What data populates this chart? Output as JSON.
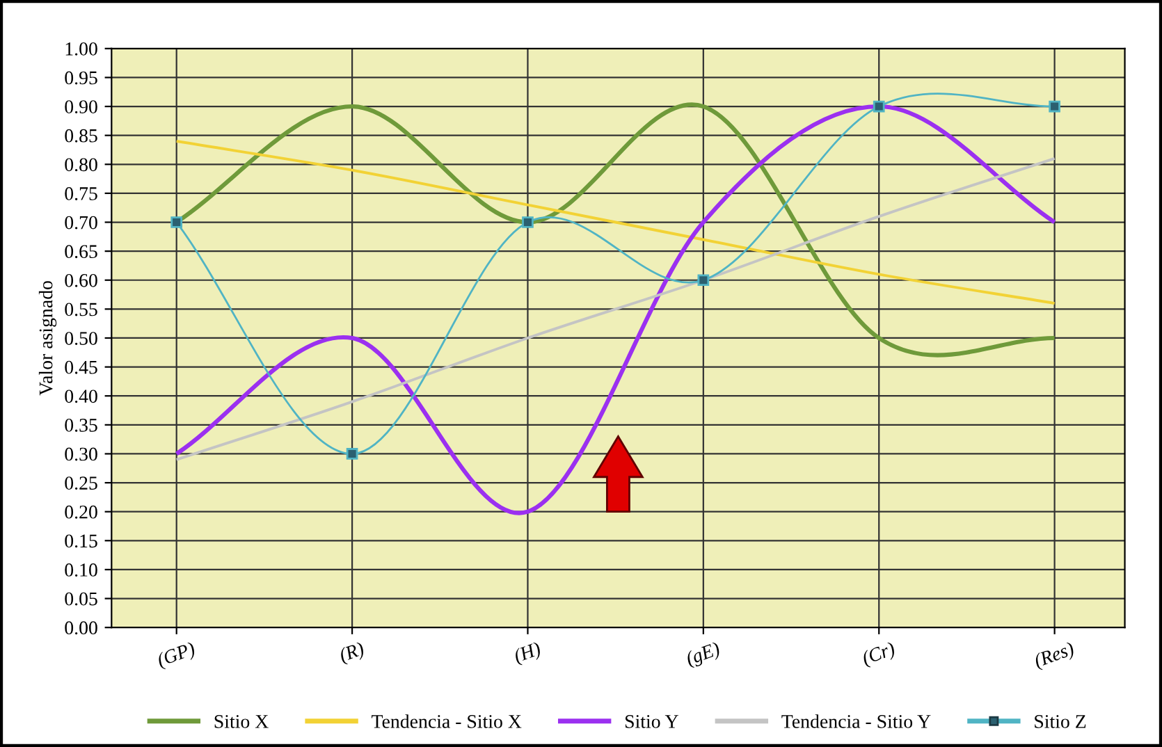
{
  "chart_data": {
    "type": "line",
    "ylabel": "Valor asignado",
    "categories": [
      "(GP)",
      "(R)",
      "(H)",
      "(gE)",
      "(Cr)",
      "(Res)"
    ],
    "series": [
      {
        "name": "Sitio X",
        "color": "#6f9a3a",
        "values": [
          0.7,
          0.9,
          0.7,
          0.9,
          0.5,
          0.5
        ]
      },
      {
        "name": "Tendencia - Sitio X",
        "color": "#f2d235",
        "values": [
          0.84,
          0.79,
          0.73,
          0.67,
          0.61,
          0.56
        ]
      },
      {
        "name": "Sitio Y",
        "color": "#9b30f0",
        "values": [
          0.3,
          0.5,
          0.2,
          0.7,
          0.9,
          0.7
        ]
      },
      {
        "name": "Tendencia - Sitio Y",
        "color": "#c4c4c4",
        "values": [
          0.29,
          0.39,
          0.5,
          0.6,
          0.71,
          0.81
        ]
      },
      {
        "name": "Sitio Z",
        "color": "#50b4c4",
        "marker": "square",
        "values": [
          0.7,
          0.3,
          0.7,
          0.6,
          0.9,
          0.9
        ]
      }
    ],
    "ylim": [
      0,
      1
    ],
    "yticks": [
      {
        "value": 0,
        "label": "0.00"
      },
      {
        "value": 0.05,
        "label": "0.05"
      },
      {
        "value": 0.1,
        "label": "0.10"
      },
      {
        "value": 0.15,
        "label": "0.15"
      },
      {
        "value": 0.2,
        "label": "0.20"
      },
      {
        "value": 0.25,
        "label": "0.25"
      },
      {
        "value": 0.3,
        "label": "0.30"
      },
      {
        "value": 0.35,
        "label": "0.35"
      },
      {
        "value": 0.4,
        "label": "0.40"
      },
      {
        "value": 0.45,
        "label": "0.45"
      },
      {
        "value": 0.5,
        "label": "0.50"
      },
      {
        "value": 0.55,
        "label": "0.55"
      },
      {
        "value": 0.6,
        "label": "0.60"
      },
      {
        "value": 0.65,
        "label": "0.65"
      },
      {
        "value": 0.7,
        "label": "0.70"
      },
      {
        "value": 0.75,
        "label": "0.75"
      },
      {
        "value": 0.8,
        "label": "0.80"
      },
      {
        "value": 0.85,
        "label": "0.85"
      },
      {
        "value": 0.9,
        "label": "0.90"
      },
      {
        "value": 0.95,
        "label": "0.95"
      },
      {
        "value": 1,
        "label": "1.00"
      }
    ],
    "grid": true,
    "legend": "bottom",
    "marker": "none",
    "line_style": "solid"
  }
}
